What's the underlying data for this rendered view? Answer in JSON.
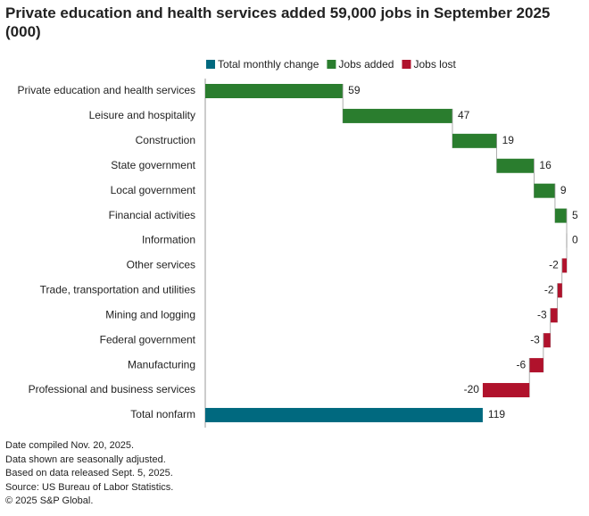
{
  "chart_data": {
    "type": "waterfall",
    "title": "Private education and health services added 59,000 jobs in September 2025 (000)",
    "legend": [
      {
        "name": "Total monthly change",
        "color": "#00697f"
      },
      {
        "name": "Jobs added",
        "color": "#2a7d2e"
      },
      {
        "name": "Jobs lost",
        "color": "#b0122c"
      }
    ],
    "categories": [
      "Private education and health services",
      "Leisure and hospitality",
      "Construction",
      "State government",
      "Local government",
      "Financial activities",
      "Information",
      "Other services",
      "Trade, transportation and utilities",
      "Mining and logging",
      "Federal government",
      "Manufacturing",
      "Professional and business services",
      "Total nonfarm"
    ],
    "values": [
      59,
      47,
      19,
      16,
      9,
      5,
      0,
      -2,
      -2,
      -3,
      -3,
      -6,
      -20,
      119
    ],
    "xlim": [
      0,
      155
    ],
    "notes": [
      "Date compiled Nov. 20, 2025.",
      "Data shown are seasonally adjusted.",
      "Based on data released Sept. 5, 2025.",
      "Source: US Bureau of Labor Statistics.",
      "© 2025 S&P Global."
    ]
  }
}
